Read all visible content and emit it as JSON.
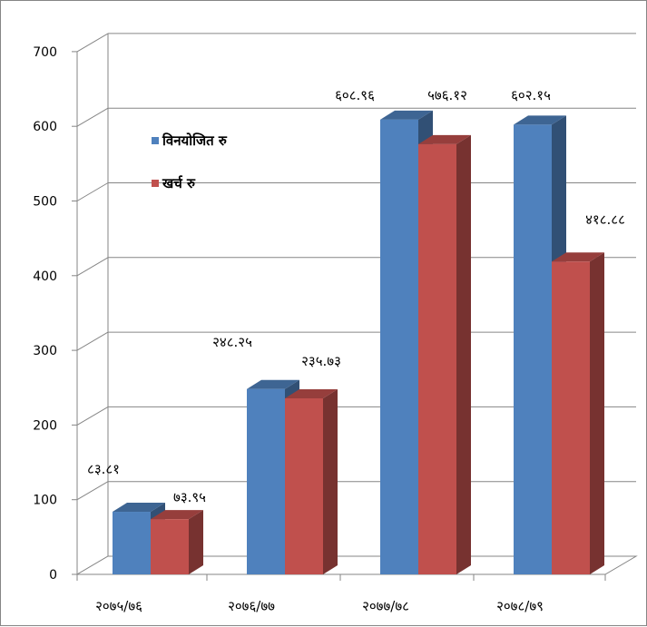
{
  "chart_data": {
    "type": "bar",
    "title": "",
    "xlabel": "",
    "ylabel": "",
    "ylim": [
      0,
      700
    ],
    "y_ticks": [
      "0",
      "100",
      "200",
      "300",
      "400",
      "500",
      "600",
      "700"
    ],
    "categories": [
      "२०७५/७६",
      "२०७६/७७",
      "२०७७/७८",
      "२०७८/७९"
    ],
    "series": [
      {
        "name": "विनयोजित रु",
        "color": "#4F81BD",
        "values": [
          83.81,
          248.25,
          608.96,
          602.15
        ],
        "labels": [
          "८३.८१",
          "२४८.२५",
          "६०८.९६",
          "६०२.१५"
        ]
      },
      {
        "name": "खर्च रु",
        "color": "#C0504D",
        "values": [
          73.95,
          235.73,
          576.12,
          418.88
        ],
        "labels": [
          "७३.९५",
          "२३५.७३",
          "५७६.१२",
          "४१८.८८"
        ]
      }
    ],
    "grid": true,
    "legend": "top-left",
    "style": "3d-column"
  }
}
